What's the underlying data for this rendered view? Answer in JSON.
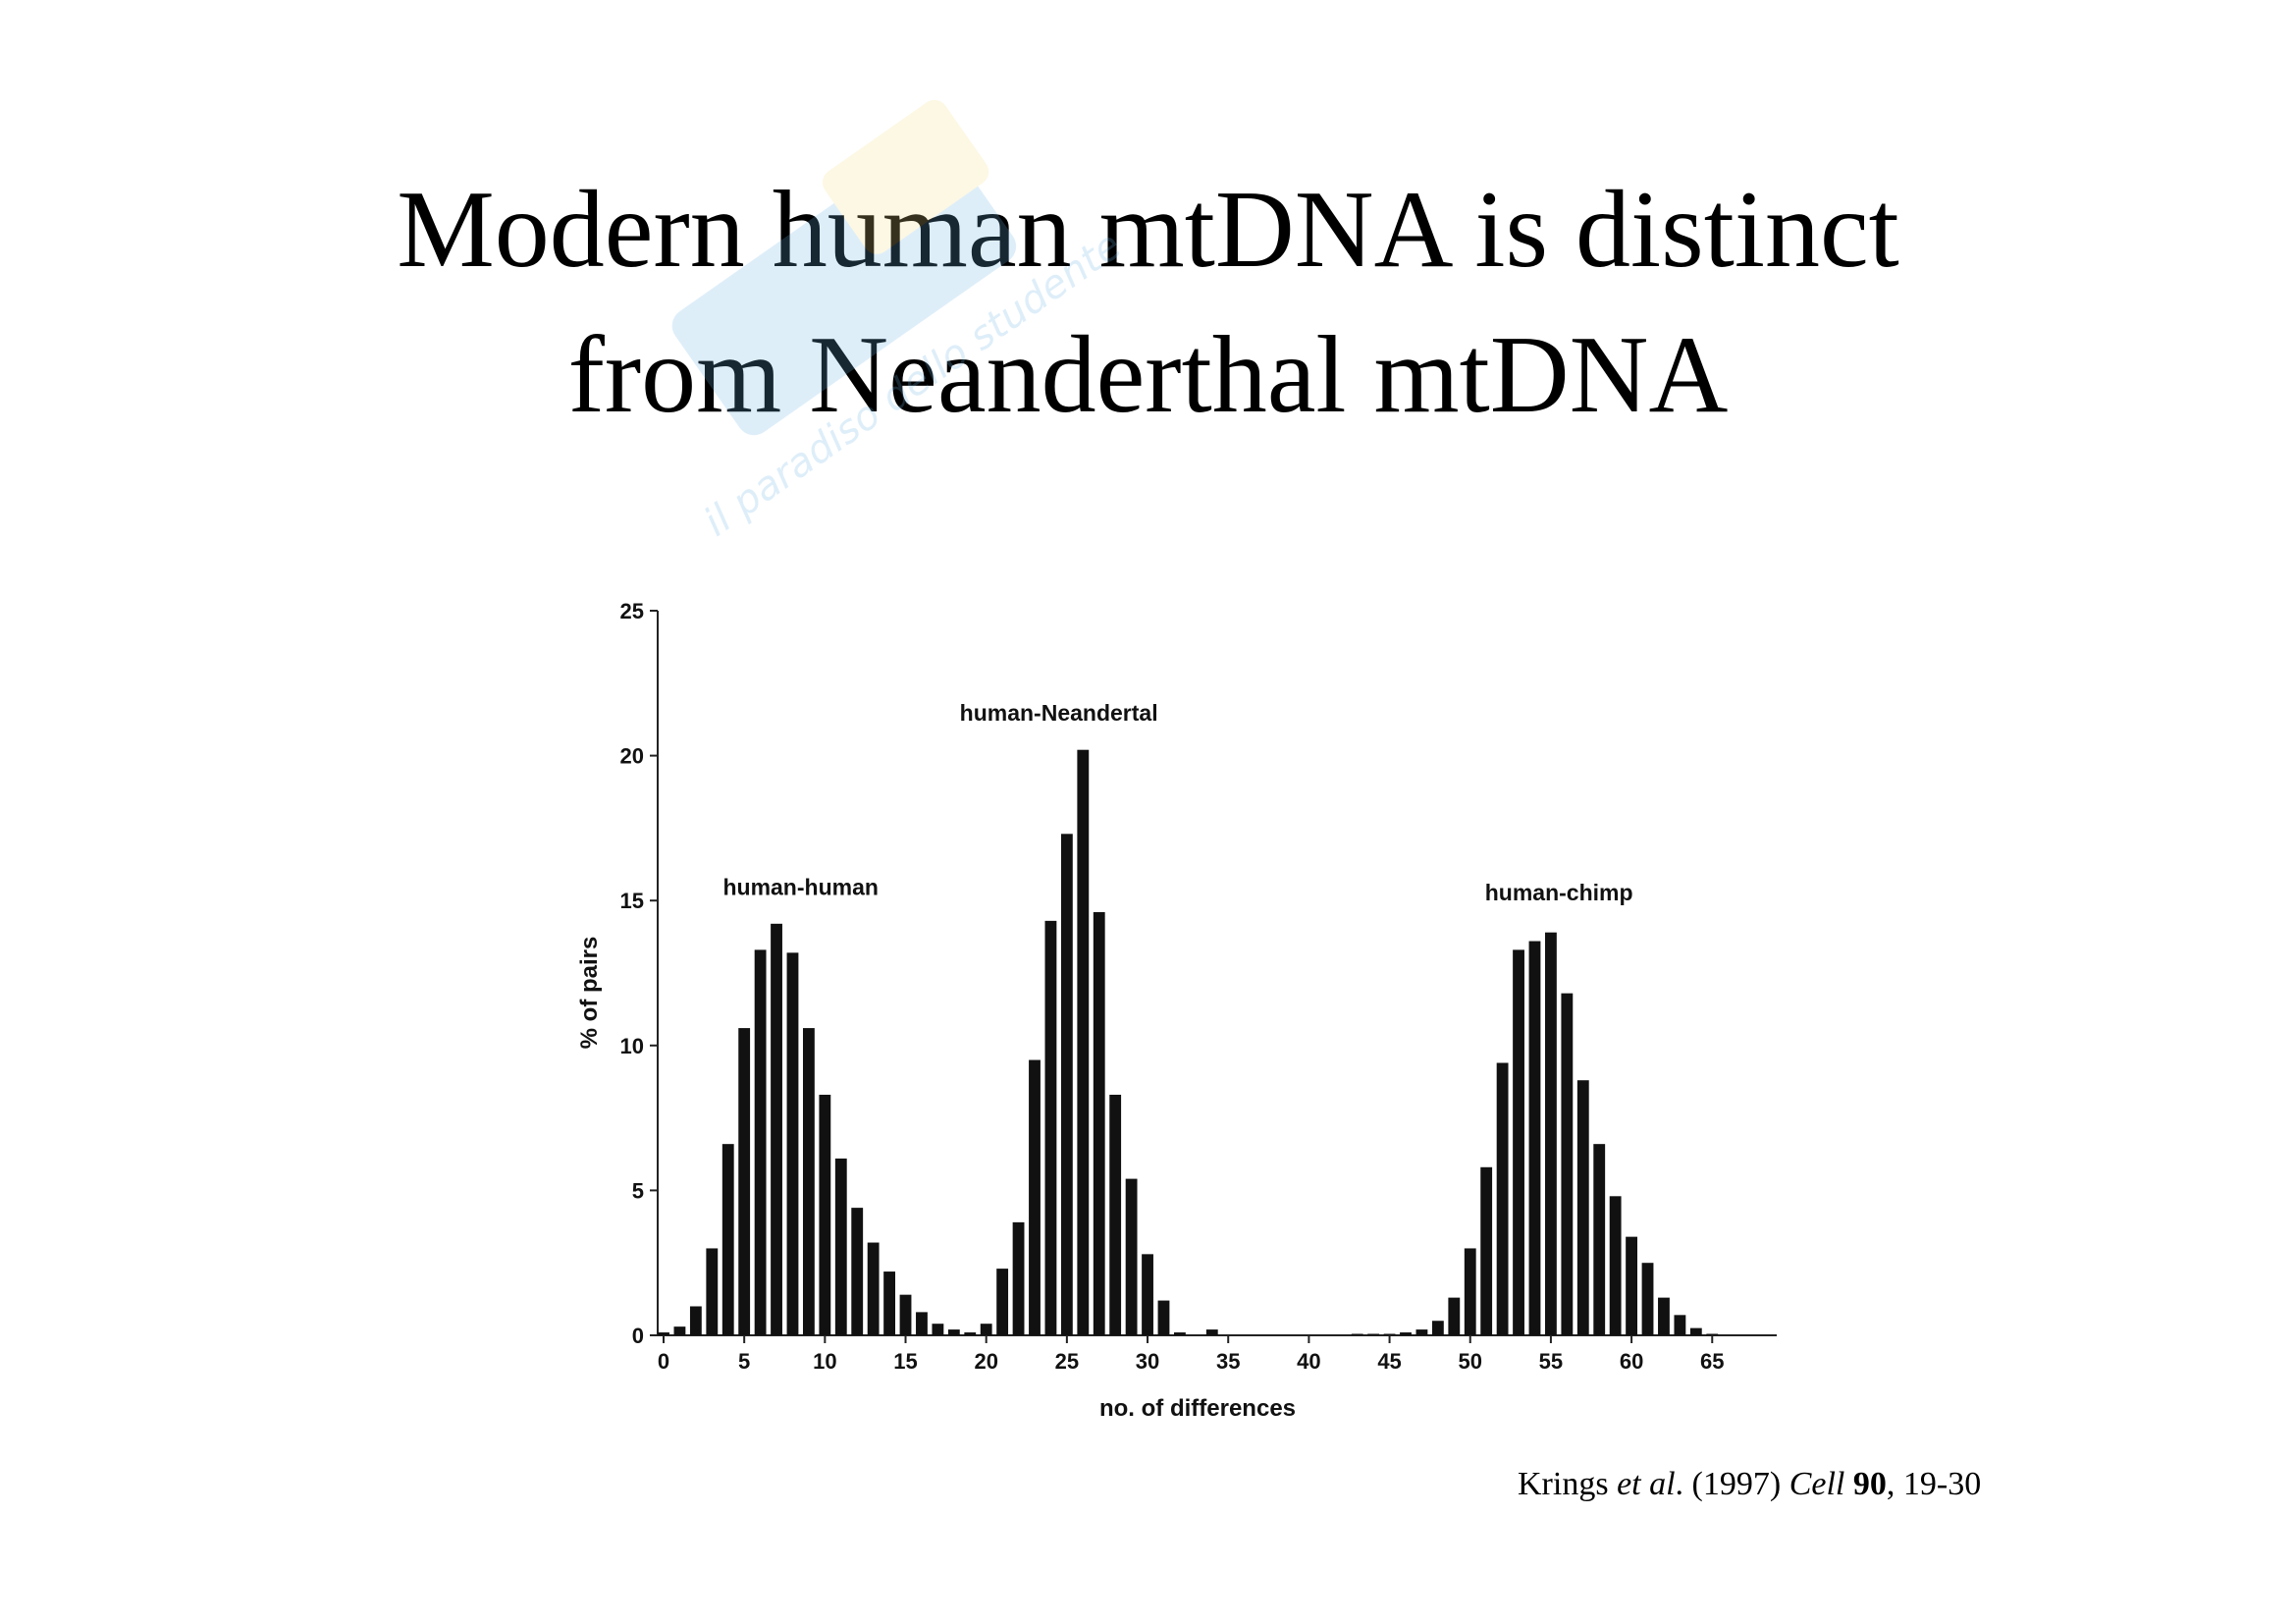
{
  "slide": {
    "title_line1": "Modern human mtDNA is distinct",
    "title_line2": "from Neanderthal mtDNA",
    "watermark_text": "il paradiso dello studente",
    "watermark_icon": "studenti-net-logo"
  },
  "citation": {
    "author": "Krings ",
    "etal": "et al",
    "year": ". (1997) ",
    "journal": "Cell",
    "volume": "90",
    "pages": ", 19-30"
  },
  "chart_data": {
    "type": "bar",
    "xlabel": "no. of differences",
    "ylabel": "% of pairs",
    "xlim": [
      0,
      69
    ],
    "ylim": [
      0,
      25
    ],
    "x_ticks": [
      0,
      5,
      10,
      15,
      20,
      25,
      30,
      35,
      40,
      45,
      50,
      55,
      60,
      65
    ],
    "y_ticks": [
      0,
      5,
      10,
      15,
      20,
      25
    ],
    "grid": false,
    "colors": {
      "bar": "#111111",
      "axis": "#222222"
    },
    "annotations": [
      {
        "text": "human-human",
        "x": 8.5,
        "y": 15.2
      },
      {
        "text": "human-Neandertal",
        "x": 24.5,
        "y": 21.2
      },
      {
        "text": "human-chimp",
        "x": 55.5,
        "y": 15.0
      }
    ],
    "series": [
      {
        "x": [
          0,
          1,
          2,
          3,
          4,
          5,
          6,
          7,
          8,
          9,
          10,
          11,
          12,
          13,
          14,
          15,
          16,
          17,
          18,
          19
        ],
        "values": [
          0.1,
          0.3,
          1.0,
          3.0,
          6.6,
          10.6,
          13.3,
          14.2,
          13.2,
          10.6,
          8.3,
          6.1,
          4.4,
          3.2,
          2.2,
          1.4,
          0.8,
          0.4,
          0.2,
          0.1
        ]
      },
      {
        "x": [
          20,
          21,
          22,
          23,
          24,
          25,
          26,
          27,
          28,
          29,
          30,
          31,
          32,
          34
        ],
        "values": [
          0.4,
          2.3,
          3.9,
          9.5,
          14.3,
          17.3,
          20.2,
          14.6,
          8.3,
          5.4,
          2.8,
          1.2,
          0.1,
          0.2
        ]
      },
      {
        "x": [
          43,
          44,
          45,
          46,
          47,
          48,
          49,
          50,
          51,
          52,
          53,
          54,
          55,
          56,
          57,
          58,
          59,
          60,
          61,
          62,
          63,
          64,
          65
        ],
        "values": [
          0.05,
          0.05,
          0.05,
          0.1,
          0.2,
          0.5,
          1.3,
          3.0,
          5.8,
          9.4,
          13.3,
          13.6,
          13.9,
          11.8,
          8.8,
          6.6,
          4.8,
          3.4,
          2.5,
          1.3,
          0.7,
          0.25,
          0.05
        ]
      }
    ]
  }
}
